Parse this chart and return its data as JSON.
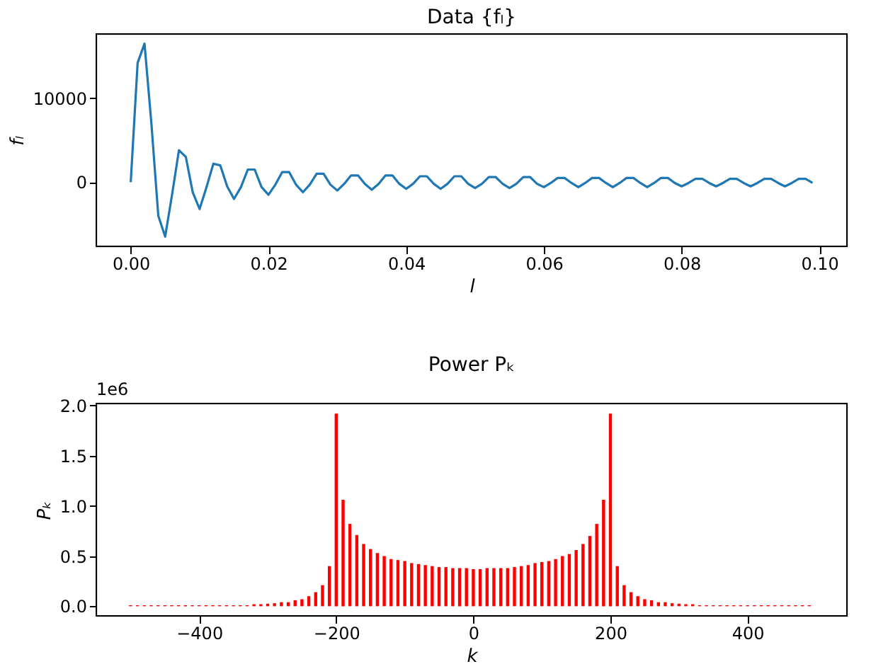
{
  "chart_data": [
    {
      "type": "line",
      "title": "Data {fₗ}",
      "xlabel": "l",
      "ylabel": "fₗ",
      "grid": false,
      "xlim": [
        -0.005,
        0.104
      ],
      "ylim": [
        -7650,
        17650
      ],
      "xticks": [
        {
          "value": 0,
          "label": "0.00"
        },
        {
          "value": 0.02,
          "label": "0.02"
        },
        {
          "value": 0.04,
          "label": "0.04"
        },
        {
          "value": 0.06,
          "label": "0.06"
        },
        {
          "value": 0.08,
          "label": "0.08"
        },
        {
          "value": 0.1,
          "label": "0.10"
        }
      ],
      "yticks": [
        0,
        10000
      ],
      "x": [
        0,
        0.001,
        0.002,
        0.003,
        0.004,
        0.005,
        0.006,
        0.007,
        0.008,
        0.009,
        0.01,
        0.011,
        0.012,
        0.013,
        0.014,
        0.015,
        0.016,
        0.017,
        0.018,
        0.019,
        0.02,
        0.021,
        0.022,
        0.023,
        0.024,
        0.025,
        0.026,
        0.027,
        0.028,
        0.029,
        0.03,
        0.031,
        0.032,
        0.033,
        0.034,
        0.035,
        0.036,
        0.037,
        0.038,
        0.039,
        0.04,
        0.041,
        0.042,
        0.043,
        0.044,
        0.045,
        0.046,
        0.047,
        0.048,
        0.049,
        0.05,
        0.051,
        0.052,
        0.053,
        0.054,
        0.055,
        0.056,
        0.057,
        0.058,
        0.059,
        0.06,
        0.061,
        0.062,
        0.063,
        0.064,
        0.065,
        0.066,
        0.067,
        0.068,
        0.069,
        0.07,
        0.071,
        0.072,
        0.073,
        0.074,
        0.075,
        0.076,
        0.077,
        0.078,
        0.079,
        0.08,
        0.081,
        0.082,
        0.083,
        0.084,
        0.085,
        0.086,
        0.087,
        0.088,
        0.089,
        0.09,
        0.091,
        0.092,
        0.093,
        0.094,
        0.095,
        0.096,
        0.097,
        0.098,
        0.099
      ],
      "series": [
        {
          "color": "#1f77b4",
          "values": [
            0,
            14200,
            16500,
            7000,
            -4000,
            -6500,
            -1500,
            3800,
            3000,
            -1200,
            -3200,
            -600,
            2200,
            2000,
            -500,
            -2000,
            -600,
            1500,
            1500,
            -600,
            -1500,
            -300,
            1200,
            1200,
            -300,
            -1200,
            -300,
            1000,
            1000,
            -300,
            -1000,
            -200,
            800,
            800,
            -200,
            -900,
            -200,
            800,
            800,
            -200,
            -800,
            -200,
            700,
            700,
            -200,
            -800,
            -200,
            700,
            700,
            -200,
            -700,
            -200,
            600,
            600,
            -200,
            -700,
            -200,
            600,
            600,
            -200,
            -600,
            -100,
            500,
            500,
            -100,
            -600,
            -100,
            500,
            500,
            -100,
            -600,
            -100,
            500,
            500,
            -100,
            -600,
            -100,
            500,
            500,
            -100,
            -500,
            -100,
            400,
            400,
            -100,
            -500,
            -100,
            400,
            400,
            -100,
            -500,
            -100,
            400,
            400,
            -100,
            -500,
            -100,
            400,
            400,
            -100
          ]
        }
      ]
    },
    {
      "type": "bar",
      "title": "Power Pₖ",
      "xlabel": "k",
      "ylabel": "Pₖ",
      "grid": false,
      "annotations": [
        "1e6"
      ],
      "xlim": [
        -550,
        545
      ],
      "ylim": [
        -0.096,
        2.02
      ],
      "xticks": [
        {
          "value": -400,
          "label": "−400"
        },
        {
          "value": -200,
          "label": "−200"
        },
        0,
        200,
        400
      ],
      "yticks": [
        {
          "value": 0,
          "label": "0.0"
        },
        0.5,
        {
          "value": 1,
          "label": "1.0"
        },
        1.5,
        {
          "value": 2,
          "label": "2.0"
        }
      ],
      "x": [
        -500,
        -490,
        -480,
        -470,
        -460,
        -450,
        -440,
        -430,
        -420,
        -410,
        -400,
        -390,
        -380,
        -370,
        -360,
        -350,
        -340,
        -330,
        -320,
        -310,
        -300,
        -290,
        -280,
        -270,
        -260,
        -250,
        -240,
        -230,
        -220,
        -210,
        -200,
        -190,
        -180,
        -170,
        -160,
        -150,
        -140,
        -130,
        -120,
        -110,
        -100,
        -90,
        -80,
        -70,
        -60,
        -50,
        -40,
        -30,
        -20,
        -10,
        0,
        10,
        20,
        30,
        40,
        50,
        60,
        70,
        80,
        90,
        100,
        110,
        120,
        130,
        140,
        150,
        160,
        170,
        180,
        190,
        200,
        210,
        220,
        230,
        240,
        250,
        260,
        270,
        280,
        290,
        300,
        310,
        320,
        330,
        340,
        350,
        360,
        370,
        380,
        390,
        400,
        410,
        420,
        430,
        440,
        450,
        460,
        470,
        480,
        490
      ],
      "series": [
        {
          "color": "#ff0000",
          "values": [
            0.01,
            0.01,
            0.01,
            0.01,
            0.01,
            0.01,
            0.01,
            0.01,
            0.01,
            0.01,
            0.01,
            0.01,
            0.01,
            0.01,
            0.01,
            0.01,
            0.01,
            0.01,
            0.02,
            0.02,
            0.025,
            0.03,
            0.04,
            0.04,
            0.06,
            0.07,
            0.1,
            0.14,
            0.21,
            0.4,
            1.92,
            1.06,
            0.82,
            0.71,
            0.62,
            0.57,
            0.53,
            0.5,
            0.47,
            0.46,
            0.45,
            0.43,
            0.42,
            0.41,
            0.4,
            0.39,
            0.39,
            0.38,
            0.38,
            0.38,
            0.37,
            0.37,
            0.38,
            0.38,
            0.38,
            0.38,
            0.39,
            0.4,
            0.41,
            0.43,
            0.44,
            0.45,
            0.47,
            0.5,
            0.52,
            0.56,
            0.62,
            0.7,
            0.82,
            1.06,
            1.92,
            0.4,
            0.21,
            0.14,
            0.1,
            0.07,
            0.06,
            0.04,
            0.04,
            0.03,
            0.025,
            0.02,
            0.02,
            0.01,
            0.01,
            0.01,
            0.01,
            0.01,
            0.01,
            0.01,
            0.01,
            0.01,
            0.01,
            0.01,
            0.01,
            0.01,
            0.01,
            0.01,
            0.01,
            0.01
          ]
        }
      ]
    }
  ]
}
